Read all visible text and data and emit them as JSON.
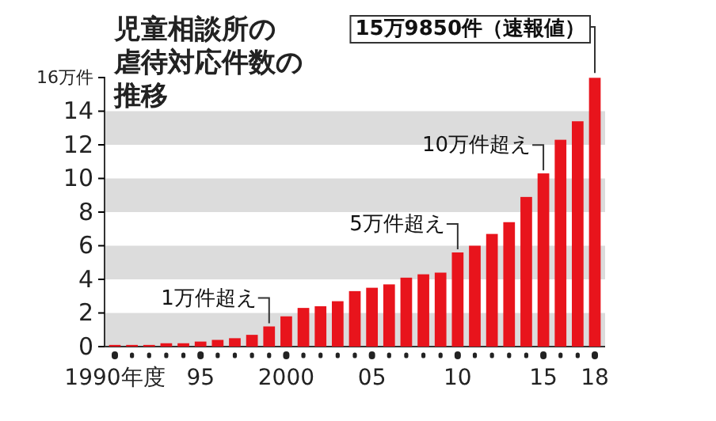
{
  "chart_data": {
    "type": "bar",
    "title": "児童相談所の虐待対応件数の推移",
    "x": [
      1990,
      1991,
      1992,
      1993,
      1994,
      1995,
      1996,
      1997,
      1998,
      1999,
      2000,
      2001,
      2002,
      2003,
      2004,
      2005,
      2006,
      2007,
      2008,
      2009,
      2010,
      2011,
      2012,
      2013,
      2014,
      2015,
      2016,
      2017,
      2018
    ],
    "values": [
      0.1,
      0.1,
      0.1,
      0.2,
      0.2,
      0.3,
      0.4,
      0.5,
      0.7,
      1.2,
      1.8,
      2.3,
      2.4,
      2.7,
      3.3,
      3.5,
      3.7,
      4.1,
      4.3,
      4.4,
      5.6,
      6.0,
      6.7,
      7.4,
      8.9,
      10.3,
      12.3,
      13.4,
      15.985
    ],
    "color": "#e8141c",
    "xlim": [
      1989.4,
      2018.6
    ],
    "xticks": [
      {
        "value": 1990,
        "label": "1990年度"
      },
      {
        "value": 1991,
        "label": null
      },
      {
        "value": 1992,
        "label": null
      },
      {
        "value": 1993,
        "label": null
      },
      {
        "value": 1994,
        "label": null
      },
      {
        "value": 1995,
        "label": "95"
      },
      {
        "value": 1996,
        "label": null
      },
      {
        "value": 1997,
        "label": null
      },
      {
        "value": 1998,
        "label": null
      },
      {
        "value": 1999,
        "label": null
      },
      2000,
      {
        "value": 2001,
        "label": null
      },
      {
        "value": 2002,
        "label": null
      },
      {
        "value": 2003,
        "label": null
      },
      {
        "value": 2004,
        "label": null
      },
      {
        "value": 2005,
        "label": "05"
      },
      {
        "value": 2006,
        "label": null
      },
      {
        "value": 2007,
        "label": null
      },
      {
        "value": 2008,
        "label": null
      },
      {
        "value": 2009,
        "label": null
      },
      {
        "value": 2010,
        "label": "10"
      },
      {
        "value": 2011,
        "label": null
      },
      {
        "value": 2012,
        "label": null
      },
      {
        "value": 2013,
        "label": null
      },
      {
        "value": 2014,
        "label": null
      },
      {
        "value": 2015,
        "label": "15"
      },
      {
        "value": 2016,
        "label": null
      },
      {
        "value": 2017,
        "label": null
      },
      {
        "value": 2018,
        "label": "18"
      }
    ],
    "ylim": [
      0,
      16
    ],
    "yticks": [
      0,
      2,
      4,
      6,
      8,
      10,
      12,
      14,
      {
        "value": 16,
        "label": "16万件"
      }
    ],
    "bands": [
      {
        "axis": "y",
        "from": 0,
        "to": 2,
        "label": null,
        "color": "#dcdcdc"
      },
      {
        "axis": "y",
        "from": 4,
        "to": 6,
        "label": null,
        "color": "#dcdcdc"
      },
      {
        "axis": "y",
        "from": 8,
        "to": 10,
        "label": null,
        "color": "#dcdcdc"
      },
      {
        "axis": "y",
        "from": 12,
        "to": 14,
        "label": null,
        "color": "#dcdcdc"
      }
    ],
    "annotations": [
      {
        "text": "1万件超え",
        "x": 1999,
        "y": 1.2
      },
      {
        "text": "5万件超え",
        "x": 2010,
        "y": 5.6
      },
      {
        "text": "10万件超え",
        "x": 2015,
        "y": 10.3
      },
      {
        "text": "15万9850件（速報値）",
        "x": 2018,
        "y": 15.985
      }
    ]
  }
}
